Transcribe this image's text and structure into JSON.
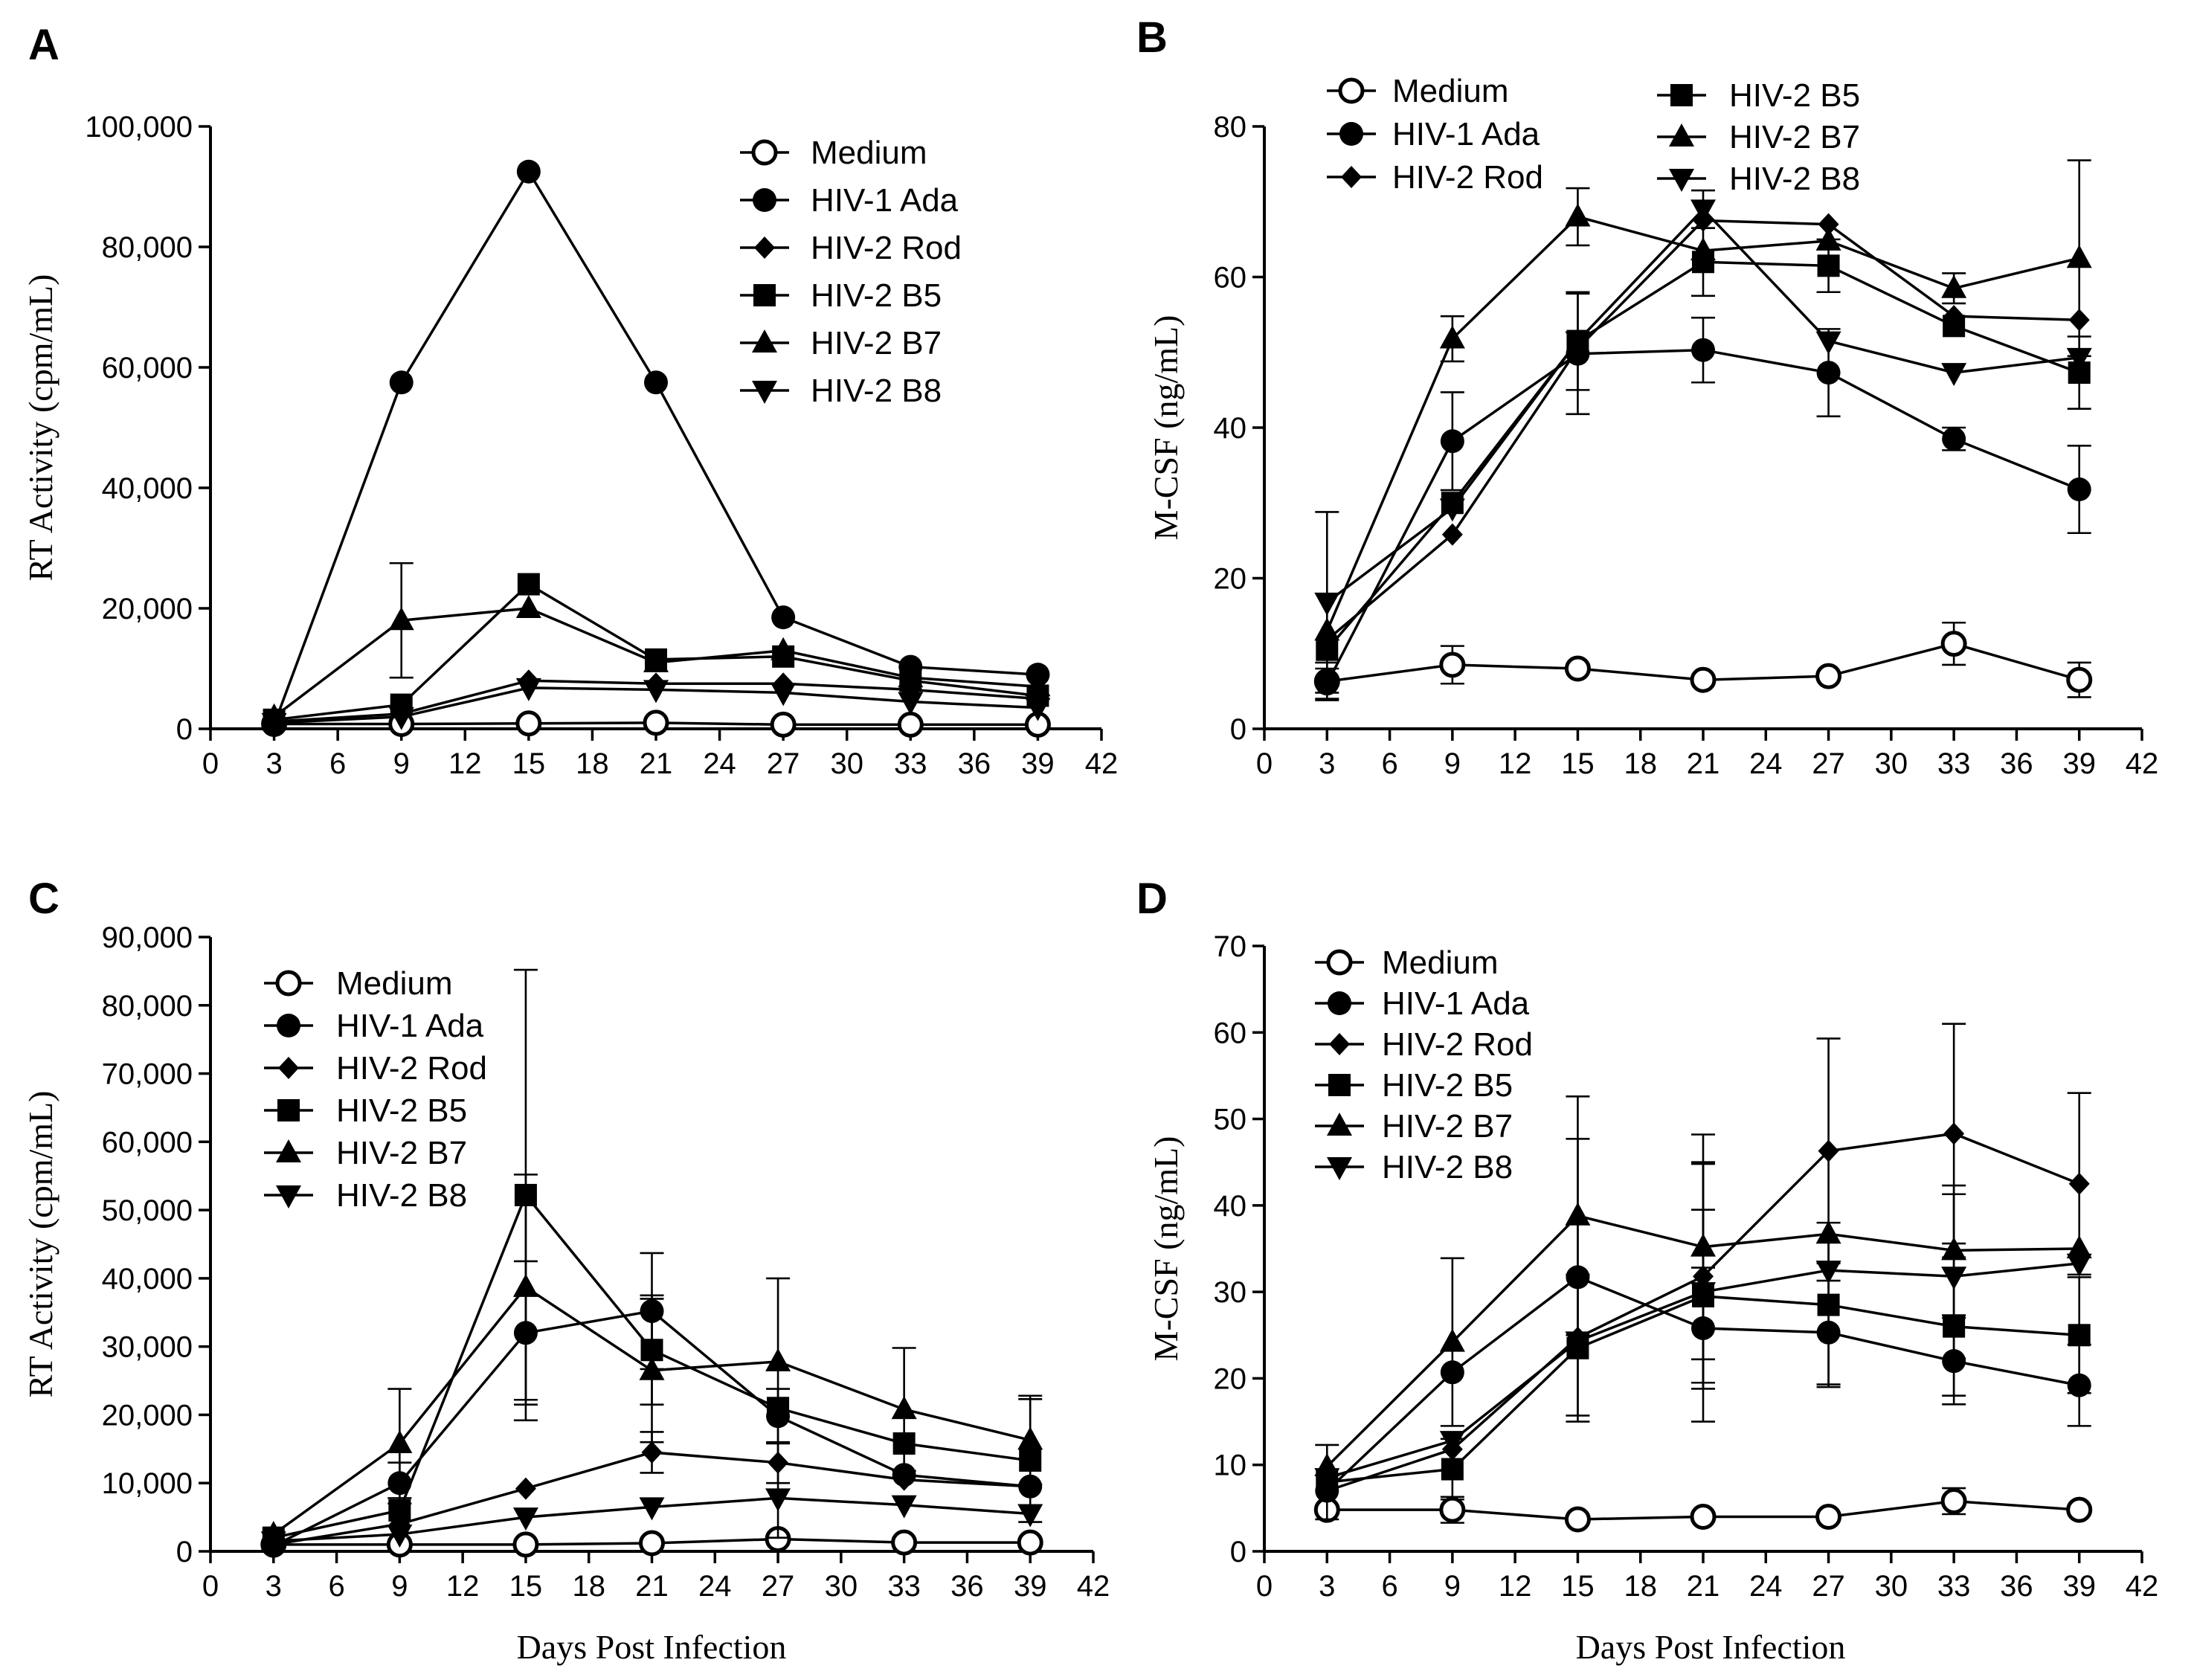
{
  "chart_data": [
    {
      "id": "A",
      "type": "line",
      "panel_label": "A",
      "title": "",
      "ylabel": "RT Activity (cpm/mL)",
      "xlabel": "",
      "xlim": [
        0,
        42
      ],
      "ylim": [
        0,
        100000
      ],
      "xticks": [
        "0",
        "3",
        "6",
        "9",
        "12",
        "15",
        "18",
        "21",
        "24",
        "27",
        "30",
        "33",
        "36",
        "39",
        "42"
      ],
      "yticks": [
        {
          "value": 0,
          "label": "0"
        },
        {
          "value": 20000,
          "label": "20,000"
        },
        {
          "value": 40000,
          "label": "40,000"
        },
        {
          "value": 60000,
          "label": "60,000"
        },
        {
          "value": 80000,
          "label": "80,000"
        },
        {
          "value": 100000,
          "label": "100,000"
        }
      ],
      "x": [
        3,
        9,
        15,
        21,
        27,
        33,
        39
      ],
      "legend_position": "top-right",
      "series": [
        {
          "name": "Medium",
          "marker": "open-circle",
          "values": [
            800,
            800,
            900,
            1000,
            700,
            700,
            700
          ]
        },
        {
          "name": "HIV-1 Ada",
          "marker": "circle",
          "values": [
            700,
            57500,
            92500,
            57500,
            18500,
            10300,
            9000
          ]
        },
        {
          "name": "HIV-2 Rod",
          "marker": "diamond",
          "values": [
            1200,
            2500,
            8000,
            7500,
            7500,
            6500,
            5000
          ]
        },
        {
          "name": "HIV-2 B5",
          "marker": "square",
          "values": [
            1500,
            4000,
            24000,
            11500,
            12000,
            8000,
            5500
          ]
        },
        {
          "name": "HIV-2 B7",
          "marker": "triangle-up",
          "values": [
            2000,
            18000,
            20000,
            11000,
            13000,
            8500,
            7000
          ],
          "err": [
            null,
            9500,
            null,
            null,
            null,
            null,
            null
          ]
        },
        {
          "name": "HIV-2 B8",
          "marker": "triangle-down",
          "values": [
            1000,
            2000,
            6800,
            6500,
            6000,
            4500,
            3500
          ]
        }
      ]
    },
    {
      "id": "B",
      "type": "line",
      "panel_label": "B",
      "title": "",
      "ylabel": "M-CSF (ng/mL)",
      "xlabel": "",
      "xlim": [
        0,
        42
      ],
      "ylim": [
        0,
        80
      ],
      "xticks": [
        "0",
        "3",
        "6",
        "9",
        "12",
        "15",
        "18",
        "21",
        "24",
        "27",
        "30",
        "33",
        "36",
        "39",
        "42"
      ],
      "yticks": [
        {
          "value": 0,
          "label": "0"
        },
        {
          "value": 20,
          "label": "20"
        },
        {
          "value": 40,
          "label": "40"
        },
        {
          "value": 60,
          "label": "60"
        },
        {
          "value": 80,
          "label": "80"
        }
      ],
      "x": [
        3,
        9,
        15,
        21,
        27,
        33,
        39
      ],
      "legend_position": "top-left",
      "series": [
        {
          "name": "Medium",
          "marker": "open-circle",
          "values": [
            6.3,
            8.5,
            8,
            6.5,
            7,
            11.3,
            6.5
          ],
          "err": [
            2.5,
            2.5,
            null,
            null,
            null,
            2.8,
            2.3
          ]
        },
        {
          "name": "HIV-1 Ada",
          "marker": "circle",
          "values": [
            6,
            38.2,
            49.8,
            50.3,
            47.3,
            38.5,
            31.8
          ],
          "err": [
            2,
            6.5,
            8,
            4.3,
            5.8,
            1.5,
            5.8
          ]
        },
        {
          "name": "HIV-2 Rod",
          "marker": "diamond",
          "values": [
            11.8,
            25.8,
            50.5,
            67.5,
            67,
            54.8,
            54.3
          ]
        },
        {
          "name": "HIV-2 B5",
          "marker": "square",
          "values": [
            10.5,
            30,
            51.5,
            62,
            61.5,
            53.5,
            47.3
          ],
          "err": [
            null,
            null,
            6.5,
            4.5,
            3.5,
            null,
            4.8
          ]
        },
        {
          "name": "HIV-2 B7",
          "marker": "triangle-up",
          "values": [
            13,
            51.8,
            68,
            63.5,
            64.8,
            58.5,
            62.5
          ],
          "err": [
            null,
            3,
            3.8,
            null,
            null,
            2,
            13
          ]
        },
        {
          "name": "HIV-2 B8",
          "marker": "triangle-down",
          "values": [
            16.8,
            29.3,
            51.5,
            69,
            51.5,
            47.3,
            49.3
          ],
          "err": [
            12,
            null,
            null,
            2.5,
            null,
            null,
            null
          ]
        }
      ]
    },
    {
      "id": "C",
      "type": "line",
      "panel_label": "C",
      "title": "",
      "ylabel": "RT Activity (cpm/mL)",
      "xlabel": "Days Post Infection",
      "xlim": [
        0,
        42
      ],
      "ylim": [
        0,
        90000
      ],
      "xticks": [
        "0",
        "3",
        "6",
        "9",
        "12",
        "15",
        "18",
        "21",
        "24",
        "27",
        "30",
        "33",
        "36",
        "39",
        "42"
      ],
      "yticks": [
        {
          "value": 0,
          "label": "0"
        },
        {
          "value": 10000,
          "label": "10,000"
        },
        {
          "value": 20000,
          "label": "20,000"
        },
        {
          "value": 30000,
          "label": "30,000"
        },
        {
          "value": 40000,
          "label": "40,000"
        },
        {
          "value": 50000,
          "label": "50,000"
        },
        {
          "value": 60000,
          "label": "60,000"
        },
        {
          "value": 70000,
          "label": "70,000"
        },
        {
          "value": 80000,
          "label": "80,000"
        },
        {
          "value": 90000,
          "label": "90,000"
        }
      ],
      "x": [
        3,
        9,
        15,
        21,
        27,
        33,
        39
      ],
      "legend_position": "top-left",
      "series": [
        {
          "name": "Medium",
          "marker": "open-circle",
          "values": [
            1000,
            1000,
            1000,
            1200,
            1800,
            1300,
            1300
          ]
        },
        {
          "name": "HIV-1 Ada",
          "marker": "circle",
          "values": [
            800,
            10000,
            32000,
            35200,
            19800,
            11200,
            9500
          ],
          "err": [
            null,
            3000,
            10500,
            8500,
            4000,
            null,
            null
          ]
        },
        {
          "name": "HIV-2 Rod",
          "marker": "diamond",
          "values": [
            1000,
            4000,
            9200,
            14500,
            13000,
            10500,
            9500
          ],
          "err": [
            null,
            null,
            null,
            3000,
            3000,
            null,
            null
          ]
        },
        {
          "name": "HIV-2 B5",
          "marker": "square",
          "values": [
            2000,
            6000,
            52200,
            29500,
            21000,
            15800,
            13300
          ],
          "err": [
            null,
            null,
            33000,
            8000,
            19000,
            null,
            9000
          ]
        },
        {
          "name": "HIV-2 B7",
          "marker": "triangle-up",
          "values": [
            2500,
            15800,
            38700,
            26500,
            27800,
            20800,
            16300
          ],
          "err": [
            null,
            8000,
            16500,
            10500,
            null,
            9000,
            6500
          ]
        },
        {
          "name": "HIV-2 B8",
          "marker": "triangle-down",
          "values": [
            1500,
            2500,
            5000,
            6500,
            7800,
            6800,
            5500
          ]
        }
      ]
    },
    {
      "id": "D",
      "type": "line",
      "panel_label": "D",
      "title": "",
      "ylabel": "M-CSF (ng/mL)",
      "xlabel": "Days Post Infection",
      "xlim": [
        0,
        42
      ],
      "ylim": [
        0,
        70
      ],
      "xticks": [
        "0",
        "3",
        "6",
        "9",
        "12",
        "15",
        "18",
        "21",
        "24",
        "27",
        "30",
        "33",
        "36",
        "39",
        "42"
      ],
      "yticks": [
        {
          "value": 0,
          "label": "0"
        },
        {
          "value": 10,
          "label": "10"
        },
        {
          "value": 20,
          "label": "20"
        },
        {
          "value": 30,
          "label": "30"
        },
        {
          "value": 40,
          "label": "40"
        },
        {
          "value": 50,
          "label": "50"
        },
        {
          "value": 60,
          "label": "60"
        },
        {
          "value": 70,
          "label": "70"
        }
      ],
      "x": [
        3,
        9,
        15,
        21,
        27,
        33,
        39
      ],
      "legend_position": "top-left",
      "series": [
        {
          "name": "Medium",
          "marker": "open-circle",
          "values": [
            4.8,
            4.8,
            3.7,
            4,
            4,
            5.8,
            4.8
          ],
          "err": [
            null,
            1.5,
            null,
            null,
            null,
            1.5,
            null
          ]
        },
        {
          "name": "HIV-1 Ada",
          "marker": "circle",
          "values": [
            7,
            20.7,
            31.7,
            25.8,
            25.3,
            22,
            19.2
          ],
          "err": [
            null,
            null,
            16,
            7,
            6,
            5,
            4.7
          ]
        },
        {
          "name": "HIV-2 Rod",
          "marker": "diamond",
          "values": [
            7,
            11.8,
            24.7,
            31.8,
            46.3,
            48.3,
            42.5
          ],
          "err": [
            null,
            null,
            null,
            13,
            13,
            12.7,
            10.5
          ]
        },
        {
          "name": "HIV-2 B5",
          "marker": "square",
          "values": [
            8,
            9.5,
            23.5,
            29.5,
            28.5,
            26,
            25
          ],
          "err": [
            4.3,
            3.5,
            8.5,
            10,
            9.5,
            8,
            6.7
          ]
        },
        {
          "name": "HIV-2 B7",
          "marker": "triangle-up",
          "values": [
            9.8,
            24.2,
            38.8,
            35.2,
            36.7,
            34.8,
            35
          ],
          "err": [
            null,
            9.7,
            13.8,
            13,
            null,
            7.5,
            null
          ]
        },
        {
          "name": "HIV-2 B8",
          "marker": "triangle-down",
          "values": [
            8.5,
            12.8,
            24.3,
            30,
            32.5,
            31.8,
            33.3
          ],
          "err": [
            null,
            null,
            null,
            15,
            null,
            9.5,
            null
          ]
        }
      ]
    }
  ],
  "colors": {
    "ink": "#000000",
    "background": "#ffffff"
  }
}
